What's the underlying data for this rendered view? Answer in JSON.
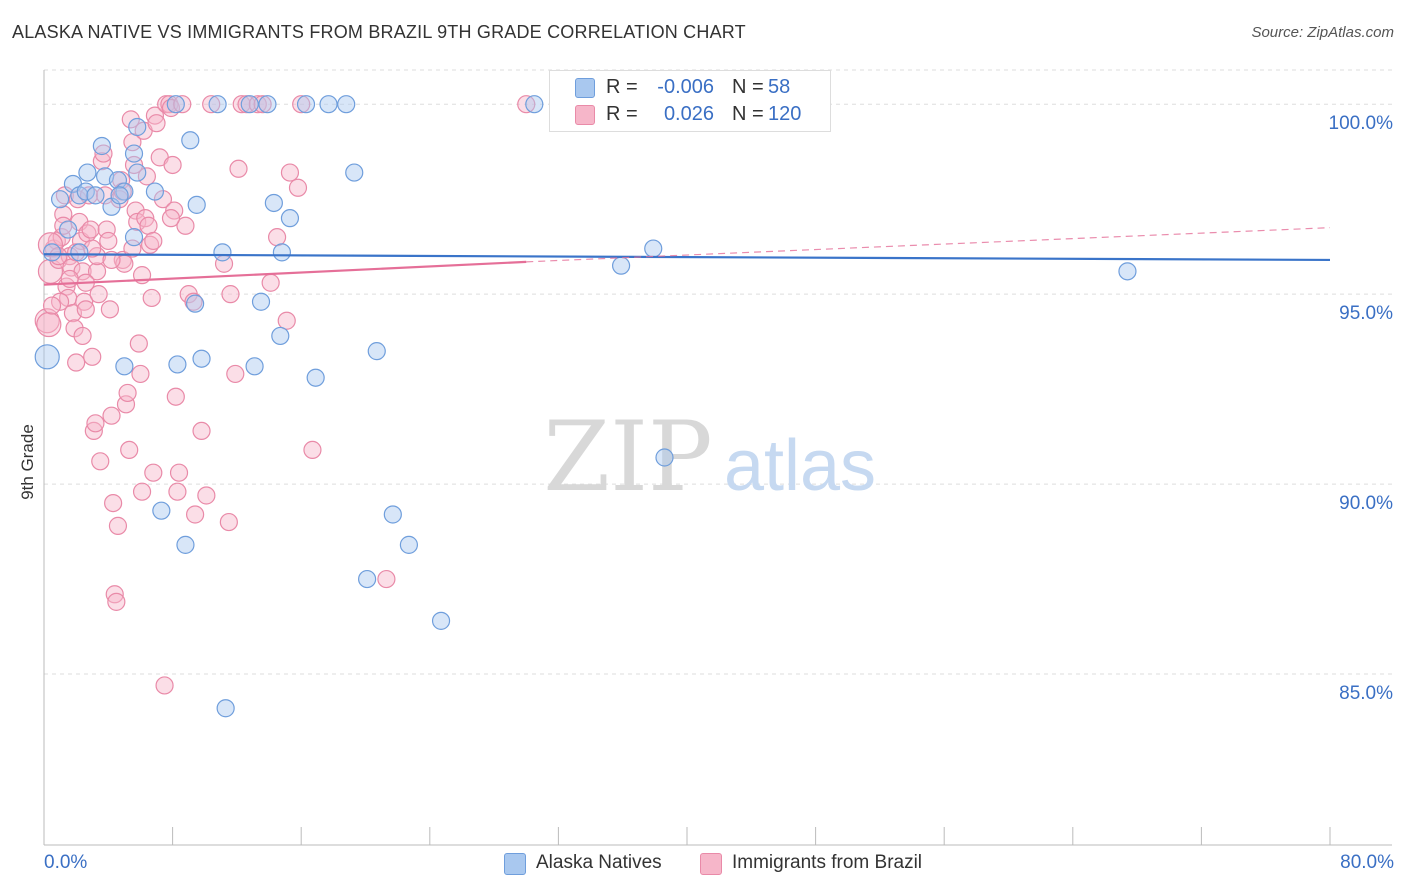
{
  "title": "ALASKA NATIVE VS IMMIGRANTS FROM BRAZIL 9TH GRADE CORRELATION CHART",
  "source": "Source: ZipAtlas.com",
  "watermark": {
    "zip": "ZIP",
    "atlas": "atlas"
  },
  "legend": {
    "r_label": "R =",
    "n_label": "N =",
    "rows": [
      {
        "name": "Alaska Natives",
        "r": "-0.006",
        "n": "58",
        "color": "#a9c8ef"
      },
      {
        "name": "Immigrants from Brazil",
        "r": "0.026",
        "n": "120",
        "color": "#f6b6c9"
      }
    ]
  },
  "colors": {
    "blue_fill": "#a9c8ef",
    "blue_stroke": "#6f9edc",
    "blue_line": "#3a74c9",
    "pink_fill": "#f6b6c9",
    "pink_stroke": "#e98aa8",
    "pink_line": "#e56f98",
    "tick_text": "#3a6fc4",
    "grid": "#dddddd"
  },
  "chart_data": {
    "type": "scatter",
    "title": "ALASKA NATIVE VS IMMIGRANTS FROM BRAZIL 9TH GRADE CORRELATION CHART",
    "xlabel": "",
    "ylabel": "9th Grade",
    "xlim": [
      0,
      80
    ],
    "ylim": [
      80.5,
      100.9
    ],
    "x_tick_labels": [
      "0.0%",
      "80.0%"
    ],
    "y_ticks": [
      85,
      90,
      95,
      100
    ],
    "y_tick_labels": [
      "85.0%",
      "90.0%",
      "95.0%",
      "100.0%"
    ],
    "grid": true,
    "legend_position": "top-center",
    "series": [
      {
        "name": "Alaska Natives",
        "r": -0.006,
        "n": 58,
        "trend": {
          "x": [
            0,
            80
          ],
          "y": [
            96.05,
            95.9
          ]
        },
        "points": [
          [
            0.2,
            93.35
          ],
          [
            1.0,
            97.5
          ],
          [
            1.8,
            97.9
          ],
          [
            2.2,
            97.6
          ],
          [
            1.5,
            96.7
          ],
          [
            0.5,
            96.1
          ],
          [
            2.6,
            97.7
          ],
          [
            3.2,
            97.6
          ],
          [
            2.7,
            98.2
          ],
          [
            3.6,
            98.9
          ],
          [
            3.8,
            98.1
          ],
          [
            4.6,
            98.0
          ],
          [
            4.2,
            97.3
          ],
          [
            5.0,
            97.7
          ],
          [
            5.6,
            98.7
          ],
          [
            5.8,
            98.2
          ],
          [
            5.6,
            96.5
          ],
          [
            5.8,
            99.4
          ],
          [
            8.2,
            100.0
          ],
          [
            10.8,
            100.0
          ],
          [
            12.8,
            100.0
          ],
          [
            13.9,
            100.0
          ],
          [
            16.3,
            100.0
          ],
          [
            17.7,
            100.0
          ],
          [
            18.8,
            100.0
          ],
          [
            30.5,
            100.0
          ],
          [
            41.5,
            100.0
          ],
          [
            44.8,
            100.0
          ],
          [
            9.1,
            99.05
          ],
          [
            9.5,
            97.35
          ],
          [
            11.1,
            96.1
          ],
          [
            14.3,
            97.4
          ],
          [
            15.3,
            97.0
          ],
          [
            14.8,
            96.1
          ],
          [
            19.3,
            98.2
          ],
          [
            13.5,
            94.8
          ],
          [
            14.7,
            93.9
          ],
          [
            9.4,
            94.75
          ],
          [
            8.3,
            93.15
          ],
          [
            9.8,
            93.3
          ],
          [
            13.1,
            93.1
          ],
          [
            5.0,
            93.1
          ],
          [
            16.9,
            92.8
          ],
          [
            20.7,
            93.5
          ],
          [
            35.9,
            95.75
          ],
          [
            37.9,
            96.2
          ],
          [
            67.4,
            95.6
          ],
          [
            38.6,
            90.7
          ],
          [
            7.3,
            89.3
          ],
          [
            8.8,
            88.4
          ],
          [
            21.7,
            89.2
          ],
          [
            22.7,
            88.4
          ],
          [
            20.1,
            87.5
          ],
          [
            24.7,
            86.4
          ],
          [
            11.3,
            84.1
          ],
          [
            4.7,
            97.6
          ],
          [
            2.2,
            96.1
          ],
          [
            6.9,
            97.7
          ]
        ]
      },
      {
        "name": "Immigrants from Brazil",
        "r": 0.026,
        "n": 120,
        "trend": {
          "x": [
            0,
            30
          ],
          "y": [
            95.25,
            95.85
          ]
        },
        "trend_extension": {
          "x": [
            30,
            80
          ],
          "y": [
            95.85,
            96.75
          ]
        },
        "points": [
          [
            0.2,
            94.3
          ],
          [
            0.3,
            94.2
          ],
          [
            0.4,
            95.6
          ],
          [
            0.6,
            96.2
          ],
          [
            0.8,
            96.4
          ],
          [
            0.9,
            95.9
          ],
          [
            1.1,
            96.5
          ],
          [
            1.2,
            97.1
          ],
          [
            1.3,
            97.6
          ],
          [
            1.4,
            95.2
          ],
          [
            1.5,
            94.9
          ],
          [
            1.6,
            96.0
          ],
          [
            1.7,
            95.7
          ],
          [
            1.8,
            94.5
          ],
          [
            1.9,
            94.1
          ],
          [
            2.0,
            93.2
          ],
          [
            2.1,
            97.5
          ],
          [
            2.2,
            96.9
          ],
          [
            2.3,
            96.4
          ],
          [
            2.4,
            95.6
          ],
          [
            2.5,
            94.8
          ],
          [
            2.6,
            94.6
          ],
          [
            2.7,
            96.6
          ],
          [
            2.8,
            97.6
          ],
          [
            2.9,
            96.7
          ],
          [
            3.0,
            93.35
          ],
          [
            3.1,
            91.4
          ],
          [
            3.2,
            91.6
          ],
          [
            3.3,
            95.6
          ],
          [
            3.4,
            95.0
          ],
          [
            3.5,
            90.6
          ],
          [
            3.6,
            98.5
          ],
          [
            3.7,
            98.7
          ],
          [
            3.8,
            97.6
          ],
          [
            3.9,
            96.7
          ],
          [
            4.0,
            96.4
          ],
          [
            4.1,
            94.6
          ],
          [
            4.2,
            91.8
          ],
          [
            4.3,
            89.5
          ],
          [
            4.4,
            87.1
          ],
          [
            4.5,
            86.9
          ],
          [
            4.6,
            88.9
          ],
          [
            4.7,
            97.5
          ],
          [
            4.8,
            98.0
          ],
          [
            4.9,
            95.9
          ],
          [
            5.0,
            95.8
          ],
          [
            5.1,
            92.1
          ],
          [
            5.2,
            92.4
          ],
          [
            5.3,
            90.9
          ],
          [
            5.4,
            99.6
          ],
          [
            5.5,
            99.0
          ],
          [
            5.6,
            98.4
          ],
          [
            5.7,
            97.2
          ],
          [
            5.8,
            96.9
          ],
          [
            5.9,
            93.7
          ],
          [
            6.0,
            92.9
          ],
          [
            6.1,
            89.8
          ],
          [
            6.2,
            99.3
          ],
          [
            6.3,
            97.0
          ],
          [
            6.4,
            98.1
          ],
          [
            6.5,
            96.8
          ],
          [
            6.6,
            96.3
          ],
          [
            6.7,
            94.9
          ],
          [
            6.8,
            90.3
          ],
          [
            6.9,
            99.7
          ],
          [
            7.0,
            99.5
          ],
          [
            7.2,
            98.6
          ],
          [
            7.4,
            97.5
          ],
          [
            7.5,
            84.7
          ],
          [
            7.6,
            100.0
          ],
          [
            7.8,
            100.0
          ],
          [
            7.9,
            99.9
          ],
          [
            8.0,
            98.4
          ],
          [
            8.1,
            97.2
          ],
          [
            8.2,
            92.3
          ],
          [
            8.3,
            89.8
          ],
          [
            8.4,
            90.3
          ],
          [
            8.6,
            100.0
          ],
          [
            8.8,
            96.8
          ],
          [
            9.0,
            95.0
          ],
          [
            9.4,
            89.2
          ],
          [
            9.8,
            91.4
          ],
          [
            10.1,
            89.7
          ],
          [
            10.4,
            100.0
          ],
          [
            11.2,
            95.8
          ],
          [
            11.6,
            95.0
          ],
          [
            11.9,
            92.9
          ],
          [
            12.1,
            98.3
          ],
          [
            12.3,
            100.0
          ],
          [
            12.6,
            100.0
          ],
          [
            13.3,
            100.0
          ],
          [
            13.6,
            100.0
          ],
          [
            14.1,
            95.3
          ],
          [
            14.5,
            96.5
          ],
          [
            15.1,
            94.3
          ],
          [
            15.3,
            98.2
          ],
          [
            15.8,
            97.8
          ],
          [
            16.0,
            100.0
          ],
          [
            16.7,
            90.9
          ],
          [
            21.3,
            87.5
          ],
          [
            30.0,
            100.0
          ],
          [
            0.4,
            96.3
          ],
          [
            1.0,
            94.8
          ],
          [
            2.0,
            96.1
          ],
          [
            3.3,
            96.0
          ],
          [
            4.9,
            97.7
          ],
          [
            6.8,
            96.4
          ],
          [
            7.9,
            97.0
          ],
          [
            9.3,
            94.8
          ],
          [
            11.5,
            89.0
          ],
          [
            2.6,
            95.3
          ],
          [
            5.5,
            96.2
          ],
          [
            0.9,
            96.0
          ],
          [
            1.6,
            95.4
          ],
          [
            3.0,
            96.2
          ],
          [
            4.2,
            95.9
          ],
          [
            6.1,
            95.5
          ],
          [
            0.5,
            94.7
          ],
          [
            2.4,
            93.9
          ],
          [
            1.2,
            96.8
          ]
        ]
      }
    ]
  }
}
